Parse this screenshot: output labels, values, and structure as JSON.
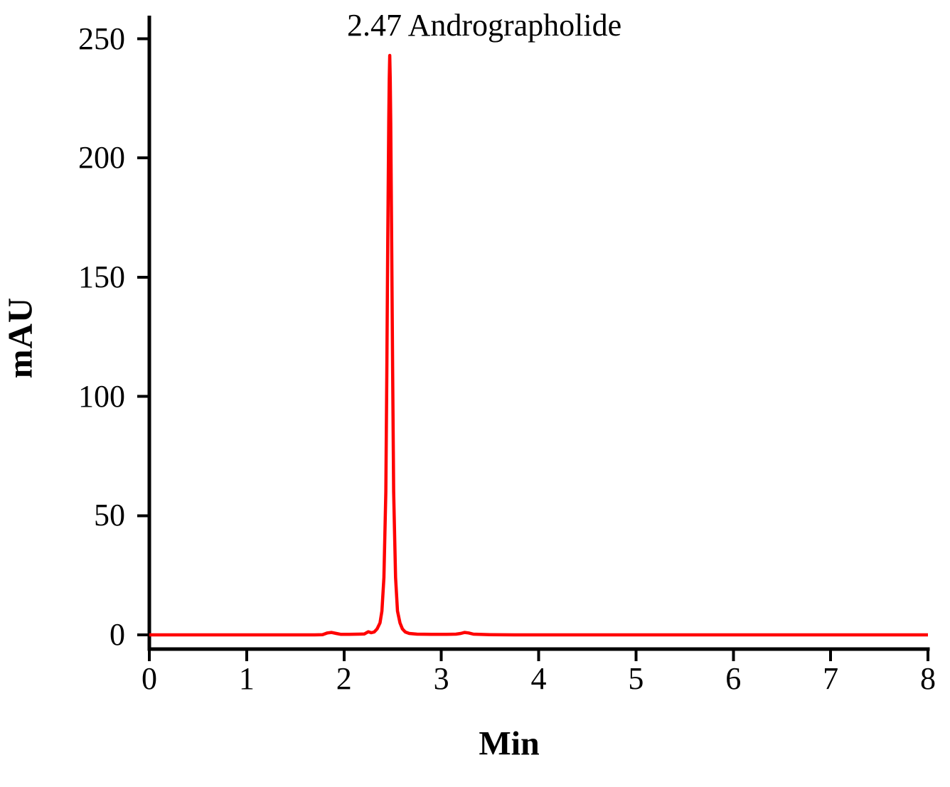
{
  "chart_data": {
    "type": "line",
    "title": "",
    "xlabel": "Min",
    "ylabel": "mAU",
    "xlim": [
      0,
      8
    ],
    "ylim": [
      0,
      250
    ],
    "x_ticks": [
      0,
      1,
      2,
      3,
      4,
      5,
      6,
      7,
      8
    ],
    "y_ticks": [
      0,
      50,
      100,
      150,
      200,
      250
    ],
    "grid": false,
    "legend": "none",
    "line_color": "#ff0000",
    "axis_color": "#000000",
    "annotation": "2.47 Andrographolide",
    "peaks": [
      {
        "retention_time_min": 2.47,
        "compound": "Andrographolide",
        "height_mAU": 243
      }
    ],
    "series": [
      {
        "name": "detector-signal",
        "points": [
          [
            0,
            0
          ],
          [
            0.3,
            0
          ],
          [
            0.6,
            0
          ],
          [
            0.9,
            0
          ],
          [
            1.2,
            0
          ],
          [
            1.5,
            0
          ],
          [
            1.7,
            0
          ],
          [
            1.78,
            0.1
          ],
          [
            1.83,
            0.8
          ],
          [
            1.87,
            1.0
          ],
          [
            1.92,
            0.6
          ],
          [
            1.97,
            0.2
          ],
          [
            2.05,
            0.2
          ],
          [
            2.15,
            0.3
          ],
          [
            2.21,
            0.4
          ],
          [
            2.25,
            1.3
          ],
          [
            2.28,
            0.9
          ],
          [
            2.31,
            1.2
          ],
          [
            2.34,
            2.5
          ],
          [
            2.37,
            5
          ],
          [
            2.39,
            10
          ],
          [
            2.41,
            24
          ],
          [
            2.43,
            60
          ],
          [
            2.44,
            110
          ],
          [
            2.45,
            165
          ],
          [
            2.46,
            215
          ],
          [
            2.465,
            233
          ],
          [
            2.47,
            243
          ],
          [
            2.475,
            233
          ],
          [
            2.48,
            215
          ],
          [
            2.49,
            165
          ],
          [
            2.5,
            110
          ],
          [
            2.51,
            60
          ],
          [
            2.53,
            24
          ],
          [
            2.55,
            10
          ],
          [
            2.575,
            5
          ],
          [
            2.6,
            2.5
          ],
          [
            2.63,
            1.2
          ],
          [
            2.67,
            0.6
          ],
          [
            2.75,
            0.3
          ],
          [
            2.9,
            0.2
          ],
          [
            3.05,
            0.2
          ],
          [
            3.15,
            0.3
          ],
          [
            3.2,
            0.6
          ],
          [
            3.24,
            1.0
          ],
          [
            3.28,
            0.8
          ],
          [
            3.33,
            0.3
          ],
          [
            3.5,
            0.1
          ],
          [
            3.75,
            0
          ],
          [
            4,
            0
          ],
          [
            4.5,
            0
          ],
          [
            5,
            0
          ],
          [
            5.5,
            0
          ],
          [
            6,
            0
          ],
          [
            6.5,
            0
          ],
          [
            7,
            0
          ],
          [
            7.5,
            0
          ],
          [
            8,
            0
          ]
        ]
      }
    ]
  }
}
